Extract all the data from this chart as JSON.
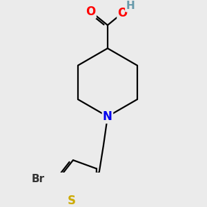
{
  "background_color": "#ebebeb",
  "bond_color": "#000000",
  "bond_width": 1.6,
  "atoms": {
    "N": {
      "color": "#0000ee",
      "fontsize": 12,
      "fontweight": "bold"
    },
    "O": {
      "color": "#ff0000",
      "fontsize": 12,
      "fontweight": "bold"
    },
    "OH_O": {
      "color": "#ff0000",
      "fontsize": 12,
      "fontweight": "bold"
    },
    "H": {
      "color": "#6699aa",
      "fontsize": 11,
      "fontweight": "bold"
    },
    "S": {
      "color": "#ccaa00",
      "fontsize": 12,
      "fontweight": "bold"
    },
    "Br": {
      "color": "#333333",
      "fontsize": 11,
      "fontweight": "bold"
    }
  },
  "figsize": [
    3.0,
    3.0
  ],
  "dpi": 100
}
